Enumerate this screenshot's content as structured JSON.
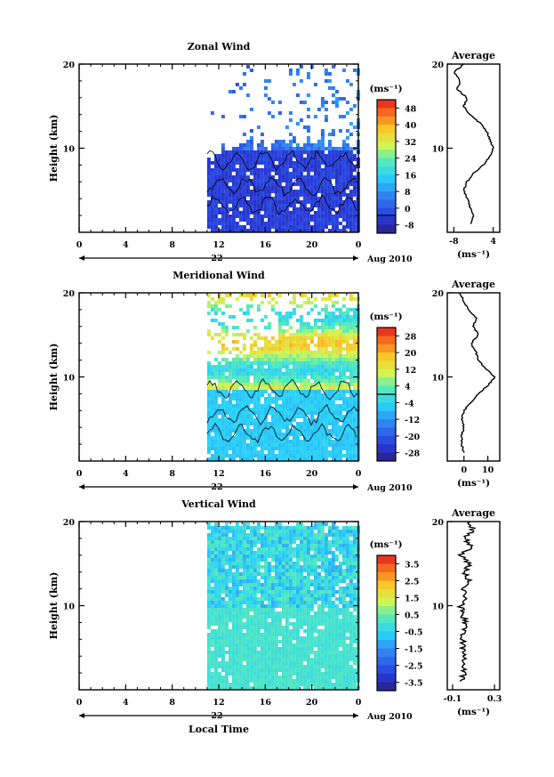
{
  "chart_data": [
    {
      "type": "heatmap",
      "title": "Zonal Wind",
      "ylabel": "Height (km)",
      "ylim": [
        0,
        20
      ],
      "yticks": [
        10,
        20
      ],
      "xlim": [
        0,
        24
      ],
      "xticks": [
        "0",
        "4",
        "8",
        "12",
        "16",
        "20",
        "0"
      ],
      "date_label": "22",
      "month_label": "Aug 2010",
      "data_start_hour": 11,
      "data_top_km": [
        20,
        18,
        17,
        11.5,
        10,
        9,
        7
      ],
      "colorbar": {
        "unit": "(ms⁻¹)",
        "ticks": [
          "48",
          "40",
          "32",
          "24",
          "16",
          "8",
          "0",
          "-8"
        ],
        "zero_line": "0",
        "min": -8,
        "max": 52
      },
      "profile": {
        "title": "Average",
        "xticks": [
          "-8",
          "4"
        ],
        "xlim": [
          -10,
          6
        ],
        "xunit": "(ms⁻¹)",
        "yticks": [
          "10",
          "20"
        ],
        "height_km": [
          1,
          2,
          3,
          4,
          5,
          6,
          7,
          8,
          9,
          10,
          11,
          12,
          13,
          14,
          15,
          16,
          17,
          18,
          19,
          20
        ],
        "value": [
          -3,
          -2,
          -3,
          -4,
          -5,
          -4,
          -2,
          1,
          3,
          4,
          3,
          2,
          0,
          -3,
          -5,
          -4,
          -7,
          -6,
          -8,
          -5
        ]
      }
    },
    {
      "type": "heatmap",
      "title": "Meridional Wind",
      "ylabel": "Height (km)",
      "ylim": [
        0,
        20
      ],
      "yticks": [
        10,
        20
      ],
      "xlim": [
        0,
        24
      ],
      "xticks": [
        "0",
        "4",
        "8",
        "12",
        "16",
        "20",
        "0"
      ],
      "date_label": "22",
      "month_label": "Aug 2010",
      "data_start_hour": 11,
      "data_top_km": [
        12,
        14,
        15,
        16,
        17,
        18,
        19
      ],
      "colorbar": {
        "unit": "(ms⁻¹)",
        "ticks": [
          "28",
          "20",
          "12",
          "4",
          "-4",
          "-12",
          "-20",
          "-28"
        ],
        "zero_line": "0",
        "min": -32,
        "max": 32
      },
      "profile": {
        "title": "Average",
        "xticks": [
          "0",
          "10"
        ],
        "xlim": [
          -7,
          15
        ],
        "xunit": "(ms⁻¹)",
        "yticks": [
          "10",
          "20"
        ],
        "height_km": [
          1,
          2,
          3,
          4,
          5,
          6,
          7,
          8,
          9,
          10,
          11,
          12,
          13,
          14,
          15,
          16,
          17,
          18,
          19,
          20
        ],
        "value": [
          0,
          -1,
          -1,
          0,
          -1,
          0,
          3,
          6,
          10,
          13,
          9,
          6,
          5,
          3,
          6,
          4,
          5,
          2,
          0,
          -2
        ]
      }
    },
    {
      "type": "heatmap",
      "title": "Vertical Wind",
      "ylabel": "Height (km)",
      "xlabel": "Local Time",
      "ylim": [
        0,
        20
      ],
      "yticks": [
        10,
        20
      ],
      "xlim": [
        0,
        24
      ],
      "xticks": [
        "0",
        "4",
        "8",
        "12",
        "16",
        "20",
        "0"
      ],
      "date_label": "22",
      "month_label": "Aug 2010",
      "data_start_hour": 11,
      "data_top_km": [
        20
      ],
      "colorbar": {
        "unit": "(ms⁻¹)",
        "ticks": [
          "3.5",
          "2.5",
          "1.5",
          "0.5",
          "-0.5",
          "-1.5",
          "-2.5",
          "-3.5"
        ],
        "zero_line": "",
        "min": -4,
        "max": 4
      },
      "profile": {
        "title": "Average",
        "xticks": [
          "-0.1",
          "0.3"
        ],
        "xlim": [
          -0.15,
          0.35
        ],
        "xunit": "(ms⁻¹)",
        "yticks": [
          "10",
          "20"
        ],
        "height_km": [
          1,
          2,
          3,
          4,
          5,
          6,
          7,
          8,
          9,
          10,
          11,
          12,
          13,
          14,
          15,
          16,
          17,
          18,
          19,
          20
        ],
        "value": [
          0,
          0,
          0.01,
          0,
          -0.01,
          0,
          0.01,
          0.02,
          0,
          -0.02,
          0.03,
          0.01,
          0.05,
          0.01,
          0.06,
          -0.02,
          0.08,
          0.02,
          0.1,
          0.05
        ]
      }
    }
  ]
}
